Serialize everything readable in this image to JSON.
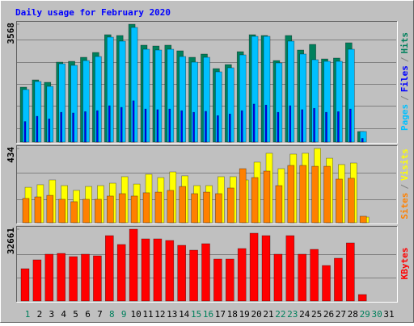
{
  "title": "Daily usage for February 2020",
  "chart_data": [
    {
      "type": "bar",
      "categories": [
        "1",
        "2",
        "3",
        "4",
        "5",
        "6",
        "7",
        "8",
        "9",
        "10",
        "11",
        "12",
        "13",
        "14",
        "15",
        "16",
        "17",
        "18",
        "19",
        "20",
        "21",
        "22",
        "23",
        "24",
        "25",
        "26",
        "27",
        "28",
        "29",
        "30",
        "31"
      ],
      "separator": "/",
      "series": [
        {
          "name": "Pages",
          "color": "#00c0ff",
          "values": [
            1589,
            1833,
            1686,
            2370,
            2322,
            2468,
            2590,
            3177,
            3055,
            3470,
            2810,
            2786,
            2810,
            2590,
            2419,
            2566,
            2126,
            2248,
            2639,
            3201,
            3201,
            2395,
            3055,
            2664,
            2493,
            2444,
            2444,
            2810,
            318,
            null,
            null
          ]
        },
        {
          "name": "Files",
          "color": "#0000ff",
          "values": [
            620,
            780,
            700,
            900,
            880,
            920,
            950,
            1100,
            1050,
            1250,
            1000,
            980,
            1000,
            950,
            900,
            930,
            800,
            850,
            950,
            1150,
            1120,
            900,
            1100,
            980,
            1020,
            900,
            920,
            1000,
            110,
            null,
            null
          ]
        },
        {
          "name": "Hits",
          "color": "#00805c",
          "values": [
            1662,
            1882,
            1809,
            2419,
            2444,
            2566,
            2713,
            3250,
            3226,
            3568,
            2933,
            2908,
            2933,
            2762,
            2566,
            2664,
            2224,
            2346,
            2737,
            3250,
            3226,
            2468,
            3226,
            2786,
            2957,
            2517,
            2542,
            3006,
            318,
            null,
            null
          ]
        }
      ],
      "ylim": [
        0,
        3568
      ],
      "yticks": [
        3568
      ]
    },
    {
      "type": "bar",
      "categories": [
        "1",
        "2",
        "3",
        "4",
        "5",
        "6",
        "7",
        "8",
        "9",
        "10",
        "11",
        "12",
        "13",
        "14",
        "15",
        "16",
        "17",
        "18",
        "19",
        "20",
        "21",
        "22",
        "23",
        "24",
        "25",
        "26",
        "27",
        "28",
        "29",
        "30",
        "31"
      ],
      "separator": "/",
      "series": [
        {
          "name": "Sites",
          "color": "#ff8000",
          "values": [
            142,
            151,
            160,
            137,
            123,
            137,
            137,
            156,
            170,
            156,
            175,
            179,
            189,
            212,
            170,
            179,
            170,
            203,
            316,
            264,
            302,
            217,
            335,
            335,
            330,
            330,
            255,
            260,
            38,
            null,
            null
          ]
        },
        {
          "name": "Visits",
          "color": "#ffff00",
          "values": [
            207,
            222,
            250,
            217,
            189,
            212,
            217,
            231,
            269,
            226,
            283,
            264,
            297,
            274,
            217,
            217,
            269,
            269,
            250,
            354,
            406,
            316,
            401,
            406,
            434,
            377,
            340,
            349,
            33,
            null,
            null
          ]
        }
      ],
      "ylim": [
        0,
        434
      ],
      "yticks": [
        434
      ]
    },
    {
      "type": "bar",
      "categories": [
        "1",
        "2",
        "3",
        "4",
        "5",
        "6",
        "7",
        "8",
        "9",
        "10",
        "11",
        "12",
        "13",
        "14",
        "15",
        "16",
        "17",
        "18",
        "19",
        "20",
        "21",
        "22",
        "23",
        "24",
        "25",
        "26",
        "27",
        "28",
        "29",
        "30",
        "31"
      ],
      "category_colors": [
        "#00805c",
        "#000000",
        "#000000",
        "#000000",
        "#000000",
        "#000000",
        "#000000",
        "#00805c",
        "#00805c",
        "#000000",
        "#000000",
        "#000000",
        "#000000",
        "#000000",
        "#00805c",
        "#00805c",
        "#000000",
        "#000000",
        "#000000",
        "#000000",
        "#000000",
        "#00805c",
        "#00805c",
        "#000000",
        "#000000",
        "#000000",
        "#000000",
        "#000000",
        "#00805c",
        "#00805c",
        "#000000"
      ],
      "series": [
        {
          "name": "KBytes",
          "color": "#ff0000",
          "values": [
            14680,
            18718,
            21285,
            21652,
            20184,
            21285,
            20551,
            29725,
            25689,
            32661,
            28257,
            28257,
            27523,
            25322,
            23120,
            26055,
            19084,
            19084,
            23853,
            30826,
            29725,
            21285,
            29725,
            21285,
            23487,
            16147,
            19450,
            26422,
            2936,
            null,
            null
          ]
        }
      ],
      "ylim": [
        0,
        32661
      ],
      "yticks": [
        32661
      ]
    }
  ]
}
